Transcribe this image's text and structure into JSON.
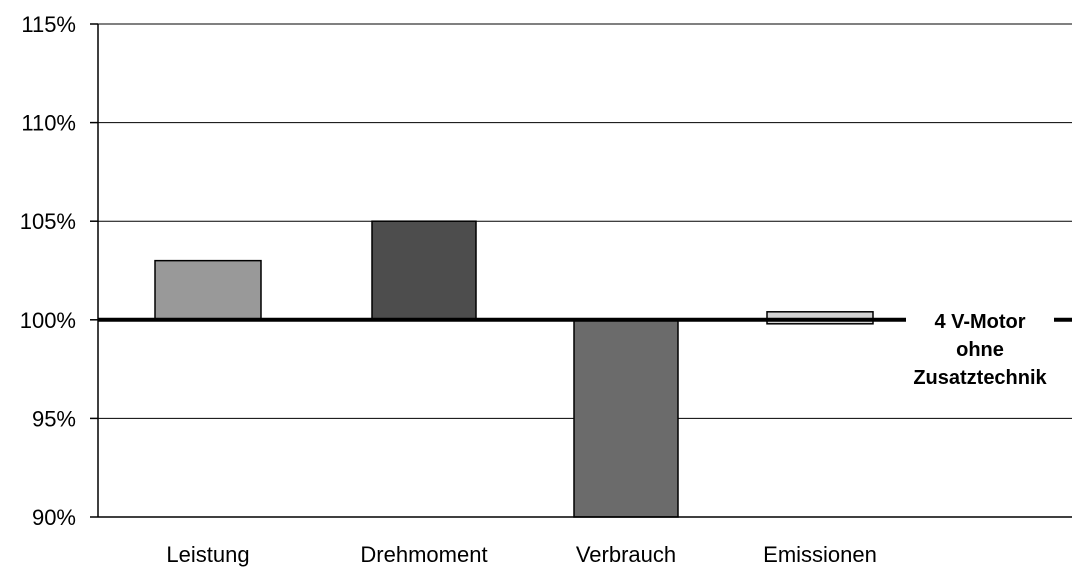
{
  "chart_data": {
    "type": "bar",
    "categories": [
      "Leistung",
      "Drehmoment",
      "Verbrauch",
      "Emissionen"
    ],
    "baseline": 100,
    "values": [
      103,
      105,
      90,
      100.1
    ],
    "colors": [
      "#999999",
      "#4d4d4d",
      "#6b6b6b",
      "#d4d4d4"
    ],
    "ylim": [
      90,
      115
    ],
    "yticks": [
      90,
      95,
      100,
      105,
      110,
      115
    ],
    "ytick_labels": [
      "90%",
      "95%",
      "100%",
      "105%",
      "110%",
      "115%"
    ],
    "grid": true,
    "baseline_annotation": [
      "4 V-Motor",
      "ohne",
      "Zusatztechnik"
    ]
  }
}
